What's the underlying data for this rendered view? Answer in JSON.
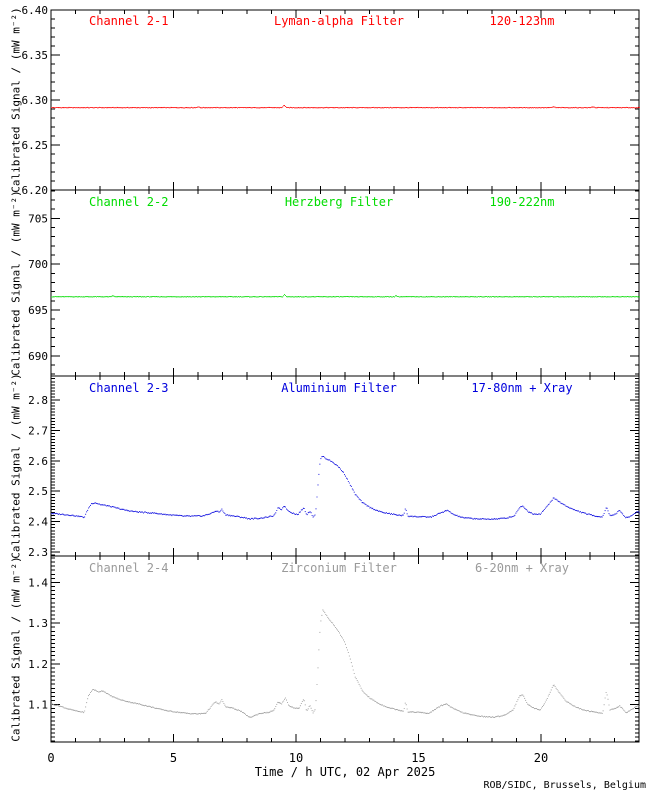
{
  "page": {
    "background": "#ffffff",
    "credit": "ROB/SIDC, Brussels, Belgium"
  },
  "x_axis": {
    "title": "Time / h UTC, 02 Apr 2025",
    "min": 0,
    "max": 24,
    "major_ticks": [
      0,
      5,
      10,
      15,
      20
    ],
    "tick_labels": [
      "0",
      "5",
      "10",
      "15",
      "20"
    ],
    "minor_step": 1
  },
  "y_title": "Calibrated Signal / (mW m⁻²)",
  "chart_data": [
    {
      "type": "line",
      "channel": "Channel 2-1",
      "filter": "Lyman-alpha Filter",
      "band": "120-123nm",
      "color": "#ff0000",
      "ylim": [
        6.2,
        6.4
      ],
      "yticks": [
        6.2,
        6.25,
        6.3,
        6.35,
        6.4
      ],
      "ytick_labels": [
        "6.20",
        "6.25",
        "6.30",
        "6.35",
        "6.40"
      ],
      "y_minor_step": 0.01,
      "ylabel": "Calibrated Signal / (mW m⁻²)",
      "points": [
        [
          0,
          6.2915
        ],
        [
          5.9,
          6.2915
        ],
        [
          5.98,
          6.2925
        ],
        [
          6.06,
          6.2915
        ],
        [
          9.42,
          6.2915
        ],
        [
          9.5,
          6.2945
        ],
        [
          9.6,
          6.2915
        ],
        [
          20.4,
          6.2915
        ],
        [
          20.5,
          6.2925
        ],
        [
          20.6,
          6.2915
        ],
        [
          22.0,
          6.2915
        ],
        [
          22.1,
          6.2925
        ],
        [
          22.2,
          6.2915
        ],
        [
          24,
          6.2915
        ]
      ]
    },
    {
      "type": "line",
      "channel": "Channel 2-2",
      "filter": "Herzberg Filter",
      "band": "190-222nm",
      "color": "#00dc00",
      "ylim": [
        687.8,
        708.1
      ],
      "yticks": [
        690,
        695,
        700,
        705
      ],
      "ytick_labels": [
        "690",
        "695",
        "700",
        "705"
      ],
      "y_minor_step": 1,
      "ylabel": "Calibrated Signal / (mW m⁻²)",
      "points": [
        [
          0,
          696.45
        ],
        [
          2.45,
          696.45
        ],
        [
          2.5,
          696.6
        ],
        [
          2.58,
          696.45
        ],
        [
          9.45,
          696.45
        ],
        [
          9.52,
          696.7
        ],
        [
          9.6,
          696.45
        ],
        [
          14.0,
          696.45
        ],
        [
          14.06,
          696.6
        ],
        [
          14.14,
          696.45
        ],
        [
          24,
          696.45
        ]
      ]
    },
    {
      "type": "line",
      "channel": "Channel 2-3",
      "filter": "Aluminium Filter",
      "band": "17-80nm + Xray",
      "color": "#0000dd",
      "ylim": [
        2.287,
        2.879
      ],
      "yticks": [
        2.3,
        2.4,
        2.5,
        2.6,
        2.7,
        2.8
      ],
      "ytick_labels": [
        "2.3",
        "2.4",
        "2.5",
        "2.6",
        "2.7",
        "2.8"
      ],
      "y_minor_step": 0.01,
      "ylabel": "Calibrated Signal / (mW m⁻²)",
      "points": [
        [
          0,
          2.427
        ],
        [
          0.3,
          2.425
        ],
        [
          0.7,
          2.422
        ],
        [
          1.1,
          2.418
        ],
        [
          1.35,
          2.414
        ],
        [
          1.5,
          2.442
        ],
        [
          1.65,
          2.46
        ],
        [
          1.8,
          2.462
        ],
        [
          2.0,
          2.456
        ],
        [
          2.3,
          2.452
        ],
        [
          2.6,
          2.446
        ],
        [
          3.0,
          2.438
        ],
        [
          3.4,
          2.433
        ],
        [
          3.8,
          2.43
        ],
        [
          4.2,
          2.428
        ],
        [
          4.6,
          2.424
        ],
        [
          5.0,
          2.421
        ],
        [
          5.4,
          2.418
        ],
        [
          5.8,
          2.418
        ],
        [
          6.2,
          2.419
        ],
        [
          6.55,
          2.428
        ],
        [
          6.75,
          2.436
        ],
        [
          6.85,
          2.43
        ],
        [
          6.95,
          2.441
        ],
        [
          7.1,
          2.423
        ],
        [
          7.4,
          2.419
        ],
        [
          7.8,
          2.414
        ],
        [
          8.1,
          2.409
        ],
        [
          8.5,
          2.411
        ],
        [
          8.9,
          2.416
        ],
        [
          9.1,
          2.42
        ],
        [
          9.25,
          2.445
        ],
        [
          9.4,
          2.44
        ],
        [
          9.5,
          2.453
        ],
        [
          9.65,
          2.437
        ],
        [
          9.85,
          2.428
        ],
        [
          10.05,
          2.423
        ],
        [
          10.3,
          2.446
        ],
        [
          10.42,
          2.423
        ],
        [
          10.55,
          2.435
        ],
        [
          10.68,
          2.416
        ],
        [
          10.78,
          2.424
        ],
        [
          10.88,
          2.52
        ],
        [
          10.98,
          2.606
        ],
        [
          11.08,
          2.616
        ],
        [
          11.2,
          2.608
        ],
        [
          11.35,
          2.602
        ],
        [
          11.55,
          2.592
        ],
        [
          11.75,
          2.578
        ],
        [
          11.95,
          2.558
        ],
        [
          12.15,
          2.528
        ],
        [
          12.4,
          2.49
        ],
        [
          12.7,
          2.462
        ],
        [
          13.0,
          2.447
        ],
        [
          13.4,
          2.433
        ],
        [
          13.8,
          2.426
        ],
        [
          14.2,
          2.421
        ],
        [
          14.38,
          2.42
        ],
        [
          14.45,
          2.446
        ],
        [
          14.55,
          2.418
        ],
        [
          15.0,
          2.416
        ],
        [
          15.5,
          2.415
        ],
        [
          15.9,
          2.429
        ],
        [
          16.15,
          2.437
        ],
        [
          16.45,
          2.422
        ],
        [
          16.8,
          2.413
        ],
        [
          17.2,
          2.41
        ],
        [
          17.7,
          2.408
        ],
        [
          18.2,
          2.409
        ],
        [
          18.6,
          2.412
        ],
        [
          18.9,
          2.419
        ],
        [
          19.1,
          2.446
        ],
        [
          19.25,
          2.452
        ],
        [
          19.45,
          2.433
        ],
        [
          19.7,
          2.425
        ],
        [
          19.95,
          2.425
        ],
        [
          20.2,
          2.447
        ],
        [
          20.5,
          2.478
        ],
        [
          20.75,
          2.464
        ],
        [
          21.0,
          2.452
        ],
        [
          21.3,
          2.44
        ],
        [
          21.7,
          2.429
        ],
        [
          22.1,
          2.42
        ],
        [
          22.5,
          2.415
        ],
        [
          22.65,
          2.448
        ],
        [
          22.8,
          2.42
        ],
        [
          23.0,
          2.424
        ],
        [
          23.2,
          2.437
        ],
        [
          23.45,
          2.412
        ],
        [
          23.7,
          2.42
        ],
        [
          23.9,
          2.433
        ],
        [
          24,
          2.43
        ]
      ]
    },
    {
      "type": "line",
      "channel": "Channel 2-4",
      "filter": "Zirconium Filter",
      "band": "6-20nm + Xray",
      "color": "#9a9a9a",
      "ylim": [
        1.008,
        1.465
      ],
      "yticks": [
        1.1,
        1.2,
        1.3,
        1.4
      ],
      "ytick_labels": [
        "1.1",
        "1.2",
        "1.3",
        "1.4"
      ],
      "y_minor_step": 0.01,
      "ylabel": "Calibrated Signal / (mW m⁻²)",
      "points": [
        [
          0,
          1.101
        ],
        [
          0.3,
          1.097
        ],
        [
          0.7,
          1.089
        ],
        [
          1.1,
          1.083
        ],
        [
          1.35,
          1.081
        ],
        [
          1.5,
          1.12
        ],
        [
          1.7,
          1.138
        ],
        [
          1.9,
          1.131
        ],
        [
          2.1,
          1.134
        ],
        [
          2.4,
          1.122
        ],
        [
          2.8,
          1.112
        ],
        [
          3.2,
          1.106
        ],
        [
          3.6,
          1.101
        ],
        [
          4.0,
          1.095
        ],
        [
          4.4,
          1.089
        ],
        [
          4.8,
          1.084
        ],
        [
          5.2,
          1.081
        ],
        [
          5.6,
          1.078
        ],
        [
          6.0,
          1.077
        ],
        [
          6.3,
          1.079
        ],
        [
          6.55,
          1.097
        ],
        [
          6.7,
          1.107
        ],
        [
          6.85,
          1.1
        ],
        [
          6.95,
          1.113
        ],
        [
          7.1,
          1.095
        ],
        [
          7.4,
          1.091
        ],
        [
          7.7,
          1.085
        ],
        [
          8.1,
          1.068
        ],
        [
          8.5,
          1.078
        ],
        [
          8.9,
          1.081
        ],
        [
          9.1,
          1.087
        ],
        [
          9.25,
          1.106
        ],
        [
          9.4,
          1.101
        ],
        [
          9.55,
          1.117
        ],
        [
          9.7,
          1.097
        ],
        [
          9.9,
          1.092
        ],
        [
          10.1,
          1.09
        ],
        [
          10.3,
          1.114
        ],
        [
          10.42,
          1.083
        ],
        [
          10.55,
          1.099
        ],
        [
          10.68,
          1.079
        ],
        [
          10.78,
          1.09
        ],
        [
          10.88,
          1.19
        ],
        [
          10.98,
          1.3
        ],
        [
          11.08,
          1.332
        ],
        [
          11.2,
          1.322
        ],
        [
          11.35,
          1.308
        ],
        [
          11.55,
          1.295
        ],
        [
          11.75,
          1.276
        ],
        [
          11.95,
          1.256
        ],
        [
          12.15,
          1.222
        ],
        [
          12.4,
          1.168
        ],
        [
          12.7,
          1.133
        ],
        [
          13.0,
          1.116
        ],
        [
          13.4,
          1.101
        ],
        [
          13.8,
          1.092
        ],
        [
          14.2,
          1.086
        ],
        [
          14.38,
          1.084
        ],
        [
          14.45,
          1.107
        ],
        [
          14.55,
          1.082
        ],
        [
          15.0,
          1.081
        ],
        [
          15.4,
          1.078
        ],
        [
          15.9,
          1.097
        ],
        [
          16.1,
          1.102
        ],
        [
          16.4,
          1.09
        ],
        [
          16.8,
          1.08
        ],
        [
          17.2,
          1.074
        ],
        [
          17.7,
          1.07
        ],
        [
          18.1,
          1.069
        ],
        [
          18.5,
          1.074
        ],
        [
          18.85,
          1.087
        ],
        [
          19.1,
          1.12
        ],
        [
          19.25,
          1.124
        ],
        [
          19.45,
          1.1
        ],
        [
          19.7,
          1.091
        ],
        [
          19.95,
          1.087
        ],
        [
          20.2,
          1.11
        ],
        [
          20.5,
          1.149
        ],
        [
          20.75,
          1.128
        ],
        [
          21.0,
          1.109
        ],
        [
          21.3,
          1.097
        ],
        [
          21.7,
          1.087
        ],
        [
          22.1,
          1.082
        ],
        [
          22.5,
          1.078
        ],
        [
          22.65,
          1.134
        ],
        [
          22.8,
          1.087
        ],
        [
          23.0,
          1.09
        ],
        [
          23.2,
          1.097
        ],
        [
          23.45,
          1.08
        ],
        [
          23.7,
          1.088
        ],
        [
          23.9,
          1.096
        ],
        [
          24,
          1.094
        ]
      ]
    }
  ]
}
